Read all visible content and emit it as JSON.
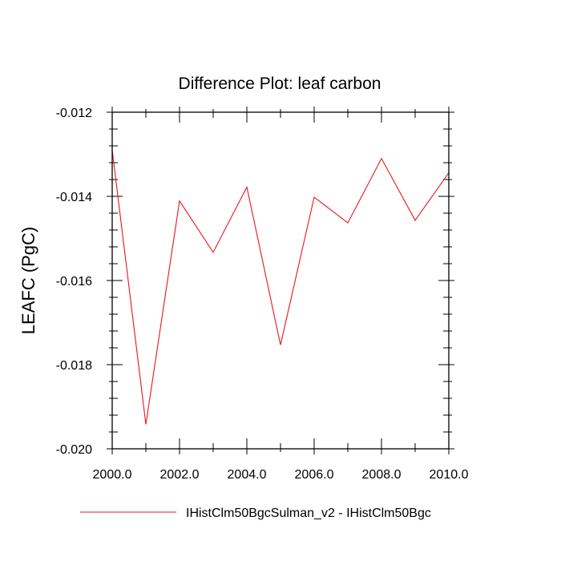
{
  "chart_data": {
    "type": "line",
    "title": "Difference Plot: leaf carbon",
    "xlabel": "",
    "ylabel": "LEAFC  (PgC)",
    "xlim": [
      2000,
      2010
    ],
    "ylim": [
      -0.02,
      -0.012
    ],
    "x_ticks": [
      2000,
      2002,
      2004,
      2006,
      2008,
      2010
    ],
    "x_tick_labels": [
      "2000.0",
      "2002.0",
      "2004.0",
      "2006.0",
      "2008.0",
      "2010.0"
    ],
    "y_ticks": [
      -0.012,
      -0.014,
      -0.016,
      -0.018,
      -0.02
    ],
    "y_tick_labels": [
      "-0.012",
      "-0.014",
      "-0.016",
      "-0.018",
      "-0.020"
    ],
    "grid": false,
    "legend_position": "bottom",
    "x": [
      2000,
      2001,
      2002,
      2003,
      2004,
      2005,
      2006,
      2007,
      2008,
      2009,
      2010
    ],
    "series": [
      {
        "name": "IHistClm50BgcSulman_v2 - IHistClm50Bgc",
        "color": "#e8161d",
        "values": [
          -0.0129,
          -0.01942,
          -0.01411,
          -0.01533,
          -0.01378,
          -0.01753,
          -0.01402,
          -0.01463,
          -0.0131,
          -0.01457,
          -0.01344
        ]
      }
    ]
  }
}
